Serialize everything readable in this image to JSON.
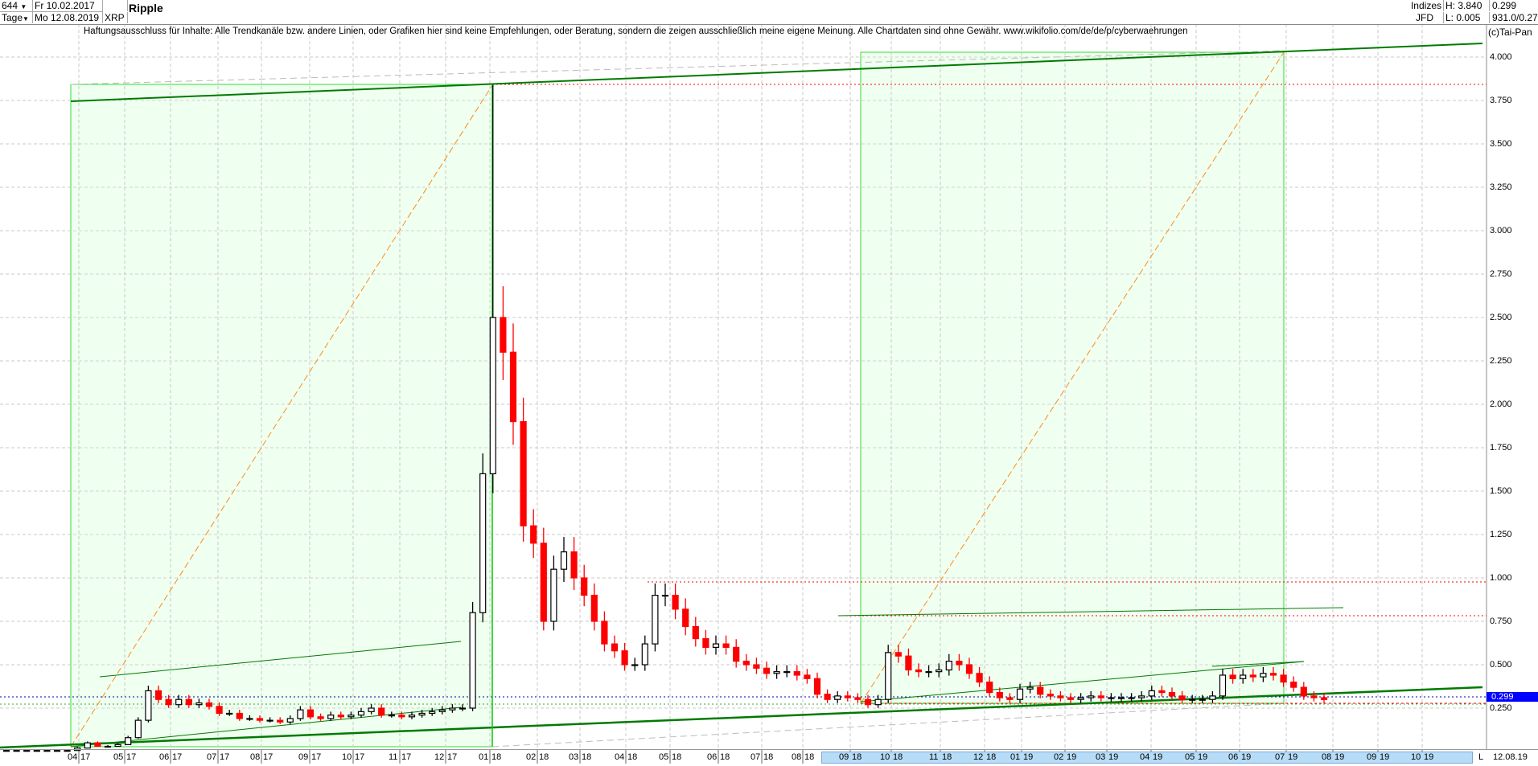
{
  "header": {
    "count": "644",
    "interval": "Tage",
    "start_date": "Fr 10.02.2017",
    "end_date": "Mo 12.08.2019",
    "symbol": "XRP",
    "title": "Ripple",
    "exchange": "Indizes",
    "broker": "JFD",
    "high": "H: 3.840",
    "low": "L: 0.005",
    "last": "0.299",
    "extra": "931.0/0.27"
  },
  "disclaimer": "Haftungsausschluss für Inhalte: Alle Trendkanäle bzw. andere Linien, oder Grafiken hier sind keine Empfehlungen, oder Beratung, sondern die zeigen ausschließlich meine eigene Meinung. Alle Chartdaten sind ohne Gewähr.  www.wikifolio.com/de/de/p/cyberwaehrungen",
  "copyright": "(c)Tai-Pan",
  "colors": {
    "up": "#000000",
    "down": "#ff0000",
    "box_fill": "#effff0",
    "box_border": "#33dd33",
    "trend": "#007a00",
    "diag": "#ff8c1a",
    "level": "#ff0000",
    "price_marker": "#0000ff"
  },
  "chart_data": {
    "type": "candlestick",
    "title": "Ripple",
    "series_interval": "week",
    "ylim": [
      0,
      4.1
    ],
    "y_ticks": [
      "4.000",
      "3.750",
      "3.500",
      "3.250",
      "3.000",
      "2.750",
      "2.500",
      "2.250",
      "2.000",
      "1.750",
      "1.500",
      "1.250",
      "1.000",
      "0.750",
      "0.500",
      "0.250"
    ],
    "x_ticks": [
      [
        "04",
        "17"
      ],
      [
        "05",
        "17"
      ],
      [
        "06",
        "17"
      ],
      [
        "07",
        "17"
      ],
      [
        "08",
        "17"
      ],
      [
        "09",
        "17"
      ],
      [
        "10",
        "17"
      ],
      [
        "11",
        "17"
      ],
      [
        "12",
        "17"
      ],
      [
        "01",
        "18"
      ],
      [
        "02",
        "18"
      ],
      [
        "03",
        "18"
      ],
      [
        "04",
        "18"
      ],
      [
        "05",
        "18"
      ],
      [
        "06",
        "18"
      ],
      [
        "07",
        "18"
      ],
      [
        "08",
        "18"
      ],
      [
        "09",
        "18"
      ],
      [
        "10",
        "18"
      ],
      [
        "11",
        "18"
      ],
      [
        "12",
        "18"
      ],
      [
        "01",
        "19"
      ],
      [
        "02",
        "19"
      ],
      [
        "03",
        "19"
      ],
      [
        "04",
        "19"
      ],
      [
        "05",
        "19"
      ],
      [
        "06",
        "19"
      ],
      [
        "07",
        "19"
      ],
      [
        "08",
        "19"
      ],
      [
        "09",
        "19"
      ],
      [
        "10",
        "19"
      ]
    ],
    "x_end_label": "12.08.19",
    "scroll_label": "L",
    "high": 3.84,
    "low": 0.005,
    "last": 0.299,
    "closes": [
      0.006,
      0.006,
      0.006,
      0.006,
      0.006,
      0.006,
      0.006,
      0.02,
      0.05,
      0.03,
      0.03,
      0.04,
      0.08,
      0.18,
      0.35,
      0.3,
      0.27,
      0.3,
      0.27,
      0.28,
      0.26,
      0.22,
      0.22,
      0.19,
      0.19,
      0.18,
      0.18,
      0.17,
      0.19,
      0.24,
      0.2,
      0.19,
      0.21,
      0.2,
      0.21,
      0.23,
      0.25,
      0.21,
      0.21,
      0.2,
      0.21,
      0.22,
      0.23,
      0.24,
      0.25,
      0.25,
      0.8,
      1.6,
      2.5,
      2.3,
      1.9,
      1.3,
      1.2,
      0.75,
      1.05,
      1.15,
      1.0,
      0.9,
      0.75,
      0.62,
      0.58,
      0.5,
      0.5,
      0.62,
      0.9,
      0.9,
      0.82,
      0.72,
      0.65,
      0.6,
      0.62,
      0.6,
      0.52,
      0.5,
      0.48,
      0.45,
      0.46,
      0.46,
      0.44,
      0.42,
      0.33,
      0.3,
      0.32,
      0.31,
      0.3,
      0.27,
      0.3,
      0.57,
      0.55,
      0.47,
      0.46,
      0.46,
      0.47,
      0.52,
      0.5,
      0.45,
      0.4,
      0.34,
      0.31,
      0.3,
      0.36,
      0.37,
      0.33,
      0.32,
      0.31,
      0.3,
      0.31,
      0.32,
      0.31,
      0.31,
      0.31,
      0.31,
      0.32,
      0.35,
      0.34,
      0.32,
      0.3,
      0.3,
      0.3,
      0.32,
      0.44,
      0.42,
      0.44,
      0.43,
      0.45,
      0.44,
      0.4,
      0.37,
      0.32,
      0.31,
      0.299
    ],
    "horizontal_levels": [
      3.85,
      0.97,
      0.77,
      0.299,
      0.26
    ]
  }
}
